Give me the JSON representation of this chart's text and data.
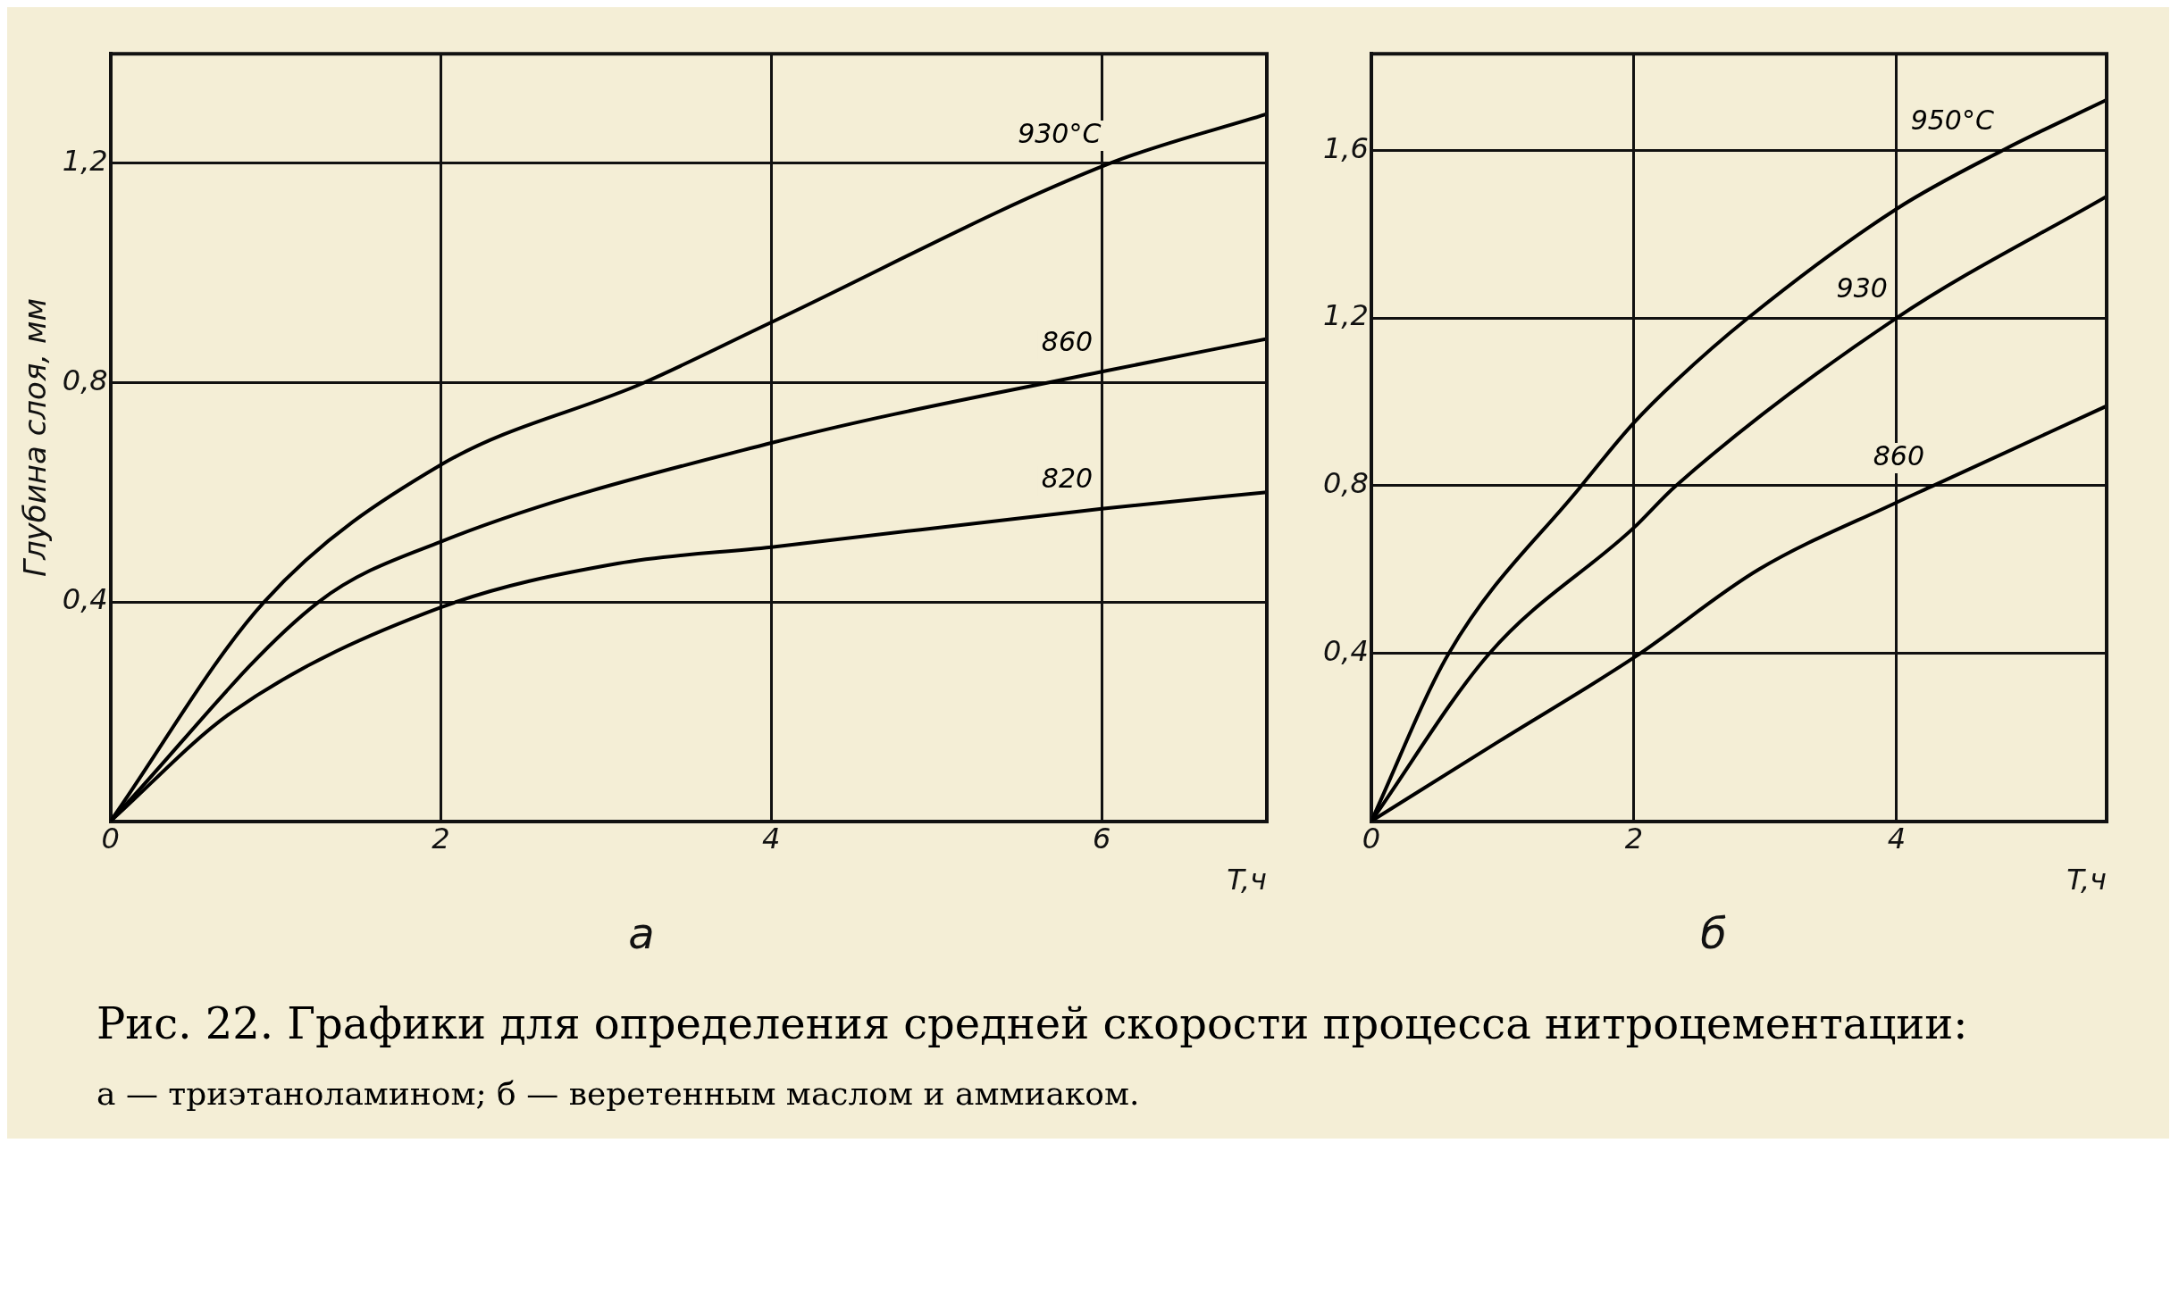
{
  "chart_data": [
    {
      "type": "line",
      "title": "а",
      "xlabel": "T,ч",
      "ylabel": "Глубина слоя, мм",
      "xlim": [
        0,
        7
      ],
      "ylim": [
        0,
        1.4
      ],
      "xticks": [
        0,
        2,
        4,
        6
      ],
      "yticks": [
        {
          "value": 0,
          "label": null
        },
        {
          "value": 0.4,
          "label": "0,4"
        },
        {
          "value": 0.8,
          "label": "0,8"
        },
        {
          "value": 1.2,
          "label": "1,2"
        }
      ],
      "grid": true,
      "legend": false,
      "marker": "none",
      "line_style": "solid",
      "series": [
        {
          "name": "930°C",
          "color": "#000000",
          "x": [
            0,
            0.93,
            2,
            3.23,
            4,
            6.05,
            7
          ],
          "values": [
            0,
            0.4,
            0.65,
            0.8,
            0.91,
            1.2,
            1.29
          ]
        },
        {
          "name": "860",
          "color": "#000000",
          "x": [
            0,
            1.26,
            2,
            4,
            6,
            7
          ],
          "values": [
            0,
            0.4,
            0.51,
            0.69,
            0.82,
            0.88
          ]
        },
        {
          "name": "820",
          "color": "#000000",
          "x": [
            0,
            0.74,
            2,
            3.07,
            4,
            6,
            7
          ],
          "values": [
            0,
            0.2,
            0.39,
            0.47,
            0.5,
            0.57,
            0.6
          ]
        }
      ],
      "annotations": [
        "Рис. 22. Графики для определения средней скорости процесса нитроцементации:",
        "а — триэтаноламином; б — веретенным маслом и аммиаком."
      ]
    },
    {
      "type": "line",
      "title": "б",
      "xlabel": "T,ч",
      "xlim": [
        0,
        5.6
      ],
      "ylim": [
        0,
        1.83
      ],
      "xticks": [
        0,
        2,
        4
      ],
      "yticks": [
        {
          "value": 0,
          "label": null
        },
        {
          "value": 0.4,
          "label": "0,4"
        },
        {
          "value": 0.8,
          "label": "0,8"
        },
        {
          "value": 1.2,
          "label": "1,2"
        },
        {
          "value": 1.6,
          "label": "1,6"
        }
      ],
      "grid": true,
      "legend": false,
      "marker": "none",
      "line_style": "solid",
      "series": [
        {
          "name": "950°C",
          "color": "#000000",
          "x": [
            0,
            0.59,
            1.6,
            2,
            2.32,
            2.87,
            4,
            4.81,
            5.6
          ],
          "values": [
            0,
            0.4,
            0.8,
            0.95,
            1.05,
            1.2,
            1.46,
            1.6,
            1.72
          ]
        },
        {
          "name": "930",
          "color": "#000000",
          "x": [
            0,
            0.9,
            2,
            2.32,
            4,
            5.6
          ],
          "values": [
            0,
            0.4,
            0.7,
            0.8,
            1.2,
            1.49
          ]
        },
        {
          "name": "860",
          "color": "#000000",
          "x": [
            0,
            0.97,
            2,
            2.95,
            4,
            4.28,
            5.6
          ],
          "values": [
            0,
            0.19,
            0.39,
            0.6,
            0.76,
            0.8,
            0.99
          ]
        }
      ]
    }
  ]
}
